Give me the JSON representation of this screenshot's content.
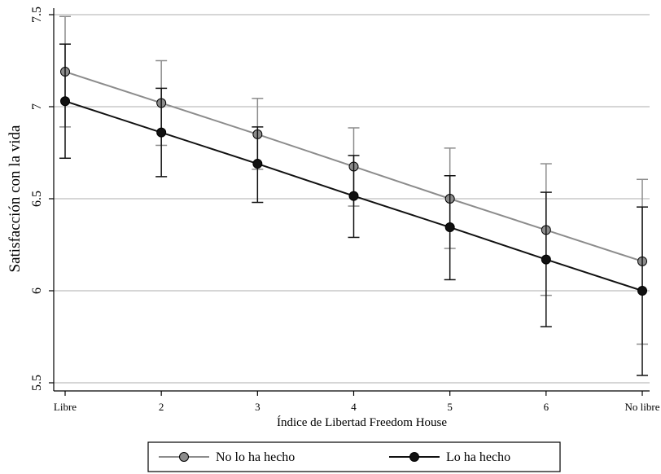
{
  "chart_data": {
    "type": "line",
    "title": "",
    "xlabel": "Índice de Libertad Freedom House",
    "ylabel": "Satisfacción con la vida",
    "categories": [
      "Libre",
      "2",
      "3",
      "4",
      "5",
      "6",
      "No libre"
    ],
    "ylim": [
      5.5,
      7.5
    ],
    "yticks": [
      "5.5",
      "6",
      "6.5",
      "7",
      "7.5"
    ],
    "grid": true,
    "legend_position": "bottom",
    "series": [
      {
        "name": "No lo ha hecho",
        "color": "#8c8c8c",
        "marker_color": "#8c8c8c",
        "values": [
          7.19,
          7.02,
          6.85,
          6.675,
          6.5,
          6.33,
          6.16
        ],
        "ci_low": [
          6.89,
          6.79,
          6.66,
          6.46,
          6.23,
          5.975,
          5.71
        ],
        "ci_high": [
          7.49,
          7.25,
          7.045,
          6.885,
          6.775,
          6.69,
          6.605
        ]
      },
      {
        "name": "Lo ha hecho",
        "color": "#111111",
        "marker_color": "#111111",
        "values": [
          7.03,
          6.86,
          6.69,
          6.515,
          6.345,
          6.17,
          6.0
        ],
        "ci_low": [
          6.72,
          6.62,
          6.48,
          6.29,
          6.06,
          5.805,
          5.54
        ],
        "ci_high": [
          7.34,
          7.1,
          6.89,
          6.735,
          6.625,
          6.535,
          6.455
        ]
      }
    ]
  }
}
